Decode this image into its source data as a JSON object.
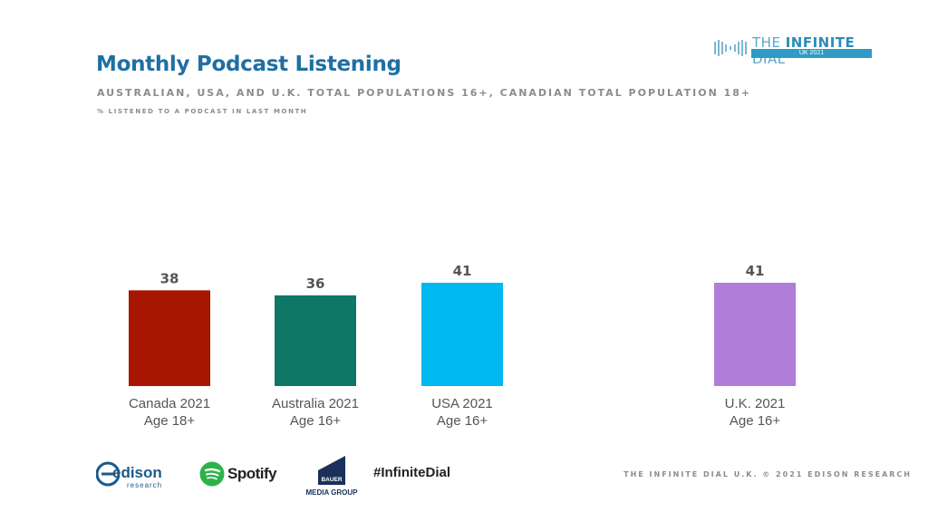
{
  "header": {
    "title": "Monthly Podcast Listening",
    "subtitle": "AUSTRALIAN, USA, AND U.K. TOTAL POPULATIONS 16+, CANADIAN TOTAL POPULATION 18+",
    "note": "% LISTENED TO A PODCAST IN LAST MONTH"
  },
  "brand": {
    "name_light": "THE ",
    "name_bold": "INFINITE",
    "name_end": " DIAL",
    "sub": "UK 2021"
  },
  "chart_data": {
    "type": "bar",
    "categories": [
      {
        "line1": "Canada 2021",
        "line2": "Age 18+"
      },
      {
        "line1": "Australia 2021",
        "line2": "Age 16+"
      },
      {
        "line1": "USA 2021",
        "line2": "Age 16+"
      },
      {
        "line1": "U.K. 2021",
        "line2": "Age 16+"
      }
    ],
    "values": [
      38,
      36,
      41,
      41
    ],
    "colors": [
      "#a61600",
      "#0e7766",
      "#00b9f0",
      "#b07ed8"
    ],
    "ylim": [
      0,
      100
    ],
    "grid": false,
    "legend": "none"
  },
  "footer": {
    "copyright": "THE INFINITE DIAL U.K. © 2021 EDISON RESEARCH",
    "hashtag": "#InfiniteDial",
    "logos": {
      "edison_word": "edison",
      "edison_sub": "research",
      "spotify_word": "Spotify",
      "bauer_badge": "BAUER",
      "bauer_sub": "MEDIA GROUP"
    }
  }
}
